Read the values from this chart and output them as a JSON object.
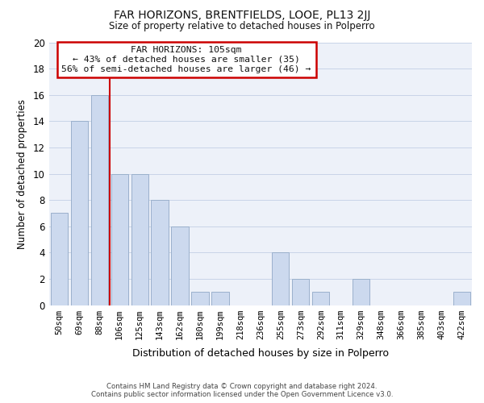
{
  "title": "FAR HORIZONS, BRENTFIELDS, LOOE, PL13 2JJ",
  "subtitle": "Size of property relative to detached houses in Polperro",
  "xlabel": "Distribution of detached houses by size in Polperro",
  "ylabel": "Number of detached properties",
  "bar_color": "#ccd9ee",
  "bar_edge_color": "#9ab0cc",
  "categories": [
    "50sqm",
    "69sqm",
    "88sqm",
    "106sqm",
    "125sqm",
    "143sqm",
    "162sqm",
    "180sqm",
    "199sqm",
    "218sqm",
    "236sqm",
    "255sqm",
    "273sqm",
    "292sqm",
    "311sqm",
    "329sqm",
    "348sqm",
    "366sqm",
    "385sqm",
    "403sqm",
    "422sqm"
  ],
  "values": [
    7,
    14,
    16,
    10,
    10,
    8,
    6,
    1,
    1,
    0,
    0,
    4,
    2,
    1,
    0,
    2,
    0,
    0,
    0,
    0,
    1
  ],
  "ylim": [
    0,
    20
  ],
  "yticks": [
    0,
    2,
    4,
    6,
    8,
    10,
    12,
    14,
    16,
    18,
    20
  ],
  "annotation_title": "FAR HORIZONS: 105sqm",
  "annotation_line1": "← 43% of detached houses are smaller (35)",
  "annotation_line2": "56% of semi-detached houses are larger (46) →",
  "annotation_box_color": "#ffffff",
  "annotation_box_edge": "#cc0000",
  "property_line_color": "#cc0000",
  "grid_color": "#c8d4e8",
  "background_color": "#edf1f9",
  "footer_line1": "Contains HM Land Registry data © Crown copyright and database right 2024.",
  "footer_line2": "Contains public sector information licensed under the Open Government Licence v3.0."
}
